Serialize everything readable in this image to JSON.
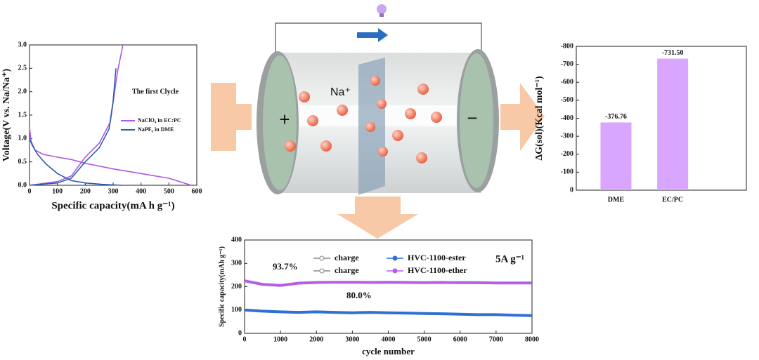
{
  "chart_data": [
    {
      "type": "line",
      "title": "The first Clycle",
      "xlabel": "Specific capacity(mA h g⁻¹)",
      "ylabel": "Voltage(V vs. Na/Na⁺)",
      "xlim": [
        0,
        600
      ],
      "xticks": [
        0,
        100,
        200,
        300,
        400,
        500,
        600
      ],
      "ylim": [
        0,
        3
      ],
      "yticks": [
        {
          "value": 0,
          "label": "0.0"
        },
        {
          "value": 0.5,
          "label": "0.5"
        },
        {
          "value": 1,
          "label": "1.0"
        },
        {
          "value": 1.5,
          "label": "1.5"
        },
        {
          "value": 2,
          "label": "2.0"
        },
        {
          "value": 2.5,
          "label": "2.5"
        },
        {
          "value": 3,
          "label": "3.0"
        }
      ],
      "series": [
        {
          "name": "NaClO₄ in EC:PC",
          "color": "#b057e6",
          "x": [
            0,
            5,
            20,
            50,
            100,
            150,
            200,
            300,
            400,
            500,
            580,
            null,
            0,
            100,
            150,
            200,
            250,
            290,
            315,
            335
          ],
          "values": [
            1.25,
            0.95,
            0.75,
            0.66,
            0.6,
            0.55,
            0.47,
            0.35,
            0.25,
            0.15,
            0,
            null,
            0,
            0.08,
            0.2,
            0.6,
            0.9,
            1.35,
            2.4,
            3.0
          ]
        },
        {
          "name": "NaPF₆ in DME",
          "color": "#2a5fb0",
          "x": [
            0,
            10,
            30,
            60,
            100,
            150,
            200,
            260,
            330,
            null,
            0,
            100,
            150,
            200,
            250,
            285,
            300,
            310
          ],
          "values": [
            1.0,
            0.85,
            0.65,
            0.45,
            0.25,
            0.1,
            0.05,
            0.02,
            0,
            null,
            0,
            0.05,
            0.15,
            0.5,
            0.8,
            1.2,
            1.8,
            2.5
          ]
        }
      ]
    },
    {
      "type": "bar",
      "ylabel": "ΔG(sol)(Kcal mol⁻¹)",
      "categories": [
        "DME",
        "EC/PC"
      ],
      "values": [
        -376.76,
        -731.5
      ],
      "value_labels": [
        "-376.76",
        "-731.50"
      ],
      "color": "#d9a6ff",
      "ylim": [
        0,
        -800
      ],
      "yticks": [
        0,
        -100,
        -200,
        -300,
        -400,
        -500,
        -600,
        -700,
        -800
      ]
    },
    {
      "type": "line",
      "xlabel": "cycle number",
      "ylabel": "Specific capacity(mAh g⁻¹)",
      "x": [
        0,
        500,
        1000,
        1500,
        2000,
        2500,
        3000,
        3500,
        4000,
        4500,
        5000,
        5500,
        6000,
        6500,
        7000,
        7500,
        8000
      ],
      "xlim": [
        0,
        8000
      ],
      "xticks": [
        0,
        1000,
        2000,
        3000,
        4000,
        5000,
        6000,
        7000,
        8000
      ],
      "ylim": [
        0,
        400
      ],
      "yticks": [
        0,
        100,
        200,
        300,
        400
      ],
      "annotations": [
        "93.7%",
        "80.0%",
        "5A g⁻¹"
      ],
      "series": [
        {
          "name": "charge",
          "color": "#888888",
          "values": [
            99,
            94,
            91,
            89,
            91,
            89,
            87,
            89,
            87,
            86,
            84,
            83,
            81,
            79,
            79,
            77,
            75
          ]
        },
        {
          "name": "HVC-1100-ester",
          "color": "#2f6fd6",
          "values": [
            100,
            95,
            92,
            90,
            92,
            90,
            88,
            90,
            88,
            87,
            85,
            84,
            82,
            80,
            80,
            78,
            76
          ]
        },
        {
          "name": "charge",
          "color": "#888888",
          "values": [
            224,
            209,
            204,
            214,
            217,
            218,
            218,
            217,
            218,
            217,
            216,
            217,
            216,
            216,
            215,
            215,
            215
          ]
        },
        {
          "name": "HVC-1100-ether",
          "color": "#b35ee8",
          "values": [
            225,
            210,
            205,
            215,
            218,
            219,
            219,
            218,
            219,
            218,
            217,
            218,
            217,
            217,
            216,
            216,
            216
          ]
        }
      ]
    }
  ],
  "diagram": {
    "ion": "Na⁺",
    "plus": "+",
    "minus": "−"
  }
}
